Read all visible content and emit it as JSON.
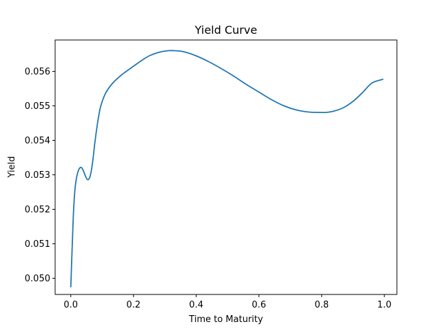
{
  "chart_data": {
    "type": "line",
    "title": "Yield Curve",
    "xlabel": "Time to Maturity",
    "ylabel": "Yield",
    "xlim": [
      -0.05,
      1.04
    ],
    "ylim": [
      0.04953,
      0.05691
    ],
    "x_ticks": [
      0.0,
      0.2,
      0.4,
      0.6,
      0.8,
      1.0
    ],
    "x_tick_labels": [
      "0.0",
      "0.2",
      "0.4",
      "0.6",
      "0.8",
      "1.0"
    ],
    "y_ticks": [
      0.05,
      0.051,
      0.052,
      0.053,
      0.054,
      0.055,
      0.056
    ],
    "y_tick_labels": [
      "0.050",
      "0.051",
      "0.052",
      "0.053",
      "0.054",
      "0.055",
      "0.056"
    ],
    "grid": false,
    "legend": "none",
    "series": [
      {
        "color": "#1f77b4",
        "x": [
          0.0,
          0.004,
          0.008,
          0.013,
          0.018,
          0.024,
          0.03,
          0.035,
          0.04,
          0.046,
          0.052,
          0.058,
          0.064,
          0.07,
          0.077,
          0.085,
          0.093,
          0.101,
          0.11,
          0.12,
          0.13,
          0.14,
          0.152,
          0.165,
          0.18,
          0.2,
          0.225,
          0.25,
          0.28,
          0.31,
          0.33,
          0.36,
          0.4,
          0.44,
          0.48,
          0.52,
          0.56,
          0.6,
          0.64,
          0.68,
          0.72,
          0.76,
          0.8,
          0.815,
          0.84,
          0.87,
          0.9,
          0.93,
          0.96,
          0.995
        ],
        "y": [
          0.04975,
          0.0508,
          0.0518,
          0.05255,
          0.0529,
          0.05312,
          0.05321,
          0.0532,
          0.05312,
          0.05298,
          0.05287,
          0.05288,
          0.05305,
          0.0534,
          0.05395,
          0.05448,
          0.0549,
          0.05515,
          0.05535,
          0.0555,
          0.05562,
          0.05572,
          0.05582,
          0.05592,
          0.05602,
          0.05615,
          0.05631,
          0.05645,
          0.05655,
          0.0566,
          0.0566,
          0.05657,
          0.05645,
          0.05628,
          0.05608,
          0.05586,
          0.05562,
          0.0554,
          0.05518,
          0.055,
          0.05488,
          0.05482,
          0.05481,
          0.05481,
          0.05485,
          0.05495,
          0.05513,
          0.05538,
          0.05566,
          0.05577
        ]
      }
    ]
  }
}
